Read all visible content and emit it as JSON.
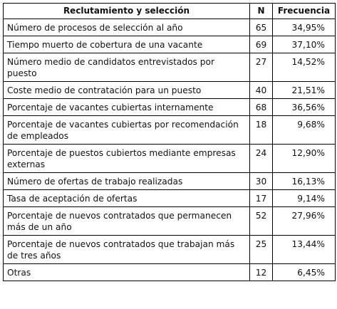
{
  "table": {
    "headers": {
      "category": "Reclutamiento y selección",
      "n": "N",
      "frequency": "Frecuencia"
    },
    "rows": [
      {
        "label": "Número de procesos de selección al año",
        "n": "65",
        "freq": "34,95%"
      },
      {
        "label": "Tiempo muerto de cobertura de una vacante",
        "n": "69",
        "freq": "37,10%"
      },
      {
        "label": "Número medio de candidatos entrevistados por puesto",
        "n": "27",
        "freq": "14,52%"
      },
      {
        "label": "Coste medio de contratación para un puesto",
        "n": "40",
        "freq": "21,51%"
      },
      {
        "label": "Porcentaje de vacantes cubiertas internamente",
        "n": "68",
        "freq": "36,56%"
      },
      {
        "label": "Porcentaje de vacantes cubiertas por recomendación de empleados",
        "n": "18",
        "freq": "9,68%"
      },
      {
        "label": "Porcentaje de puestos cubiertos mediante empresas externas",
        "n": "24",
        "freq": "12,90%"
      },
      {
        "label": "Número de ofertas de trabajo realizadas",
        "n": "30",
        "freq": "16,13%"
      },
      {
        "label": "Tasa de aceptación de ofertas",
        "n": "17",
        "freq": "9,14%"
      },
      {
        "label": "Porcentaje de nuevos contratados que permanecen más de un año",
        "n": "52",
        "freq": "27,96%"
      },
      {
        "label": "Porcentaje de nuevos contratados que trabajan más de tres años",
        "n": "25",
        "freq": "13,44%"
      },
      {
        "label": "Otras",
        "n": "12",
        "freq": "6,45%"
      }
    ]
  }
}
